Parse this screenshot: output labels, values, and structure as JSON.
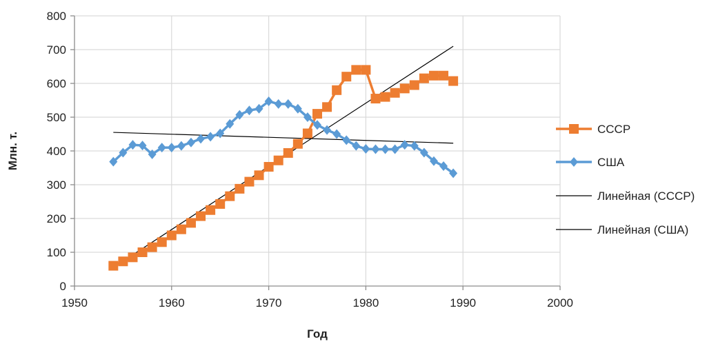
{
  "chart_data": {
    "type": "line",
    "title": "",
    "xlabel": "Год",
    "ylabel": "Млн. т.",
    "xlim": [
      1950,
      2000
    ],
    "ylim": [
      0,
      800
    ],
    "x_ticks": [
      "1950",
      "1960",
      "1970",
      "1980",
      "1990",
      "2000"
    ],
    "y_ticks": [
      "0",
      "100",
      "200",
      "300",
      "400",
      "500",
      "600",
      "700",
      "800"
    ],
    "grid": true,
    "legend_position": "right",
    "series": [
      {
        "name": "СССР",
        "color": "#ED7D31",
        "marker": "square",
        "x": [
          1954,
          1955,
          1956,
          1957,
          1958,
          1959,
          1960,
          1961,
          1962,
          1963,
          1964,
          1965,
          1966,
          1967,
          1968,
          1969,
          1970,
          1971,
          1972,
          1973,
          1974,
          1975,
          1976,
          1977,
          1978,
          1979,
          1980,
          1981,
          1982,
          1983,
          1984,
          1985,
          1986,
          1987,
          1988,
          1989
        ],
        "y": [
          60,
          73,
          85,
          100,
          115,
          130,
          150,
          168,
          187,
          207,
          225,
          243,
          266,
          288,
          309,
          328,
          353,
          372,
          394,
          421,
          452,
          510,
          530,
          580,
          620,
          640,
          640,
          555,
          560,
          572,
          585,
          595,
          615,
          623,
          623,
          607
        ]
      },
      {
        "name": "США",
        "color": "#5B9BD5",
        "marker": "diamond",
        "x": [
          1954,
          1955,
          1956,
          1957,
          1958,
          1959,
          1960,
          1961,
          1962,
          1963,
          1964,
          1965,
          1966,
          1967,
          1968,
          1969,
          1970,
          1971,
          1972,
          1973,
          1974,
          1975,
          1976,
          1977,
          1978,
          1979,
          1980,
          1981,
          1982,
          1983,
          1984,
          1985,
          1986,
          1987,
          1988,
          1989
        ],
        "y": [
          368,
          395,
          418,
          416,
          390,
          410,
          410,
          415,
          425,
          436,
          442,
          452,
          480,
          507,
          520,
          525,
          547,
          539,
          539,
          525,
          500,
          477,
          462,
          450,
          432,
          415,
          406,
          405,
          405,
          405,
          418,
          415,
          395,
          370,
          355,
          334
        ]
      }
    ],
    "trendlines": [
      {
        "name": "Линейная (СССР)",
        "color": "#000000",
        "x": [
          1954,
          1989
        ],
        "y": [
          55,
          710
        ]
      },
      {
        "name": "Линейная (США)",
        "color": "#000000",
        "x": [
          1954,
          1989
        ],
        "y": [
          455,
          423
        ]
      }
    ]
  }
}
